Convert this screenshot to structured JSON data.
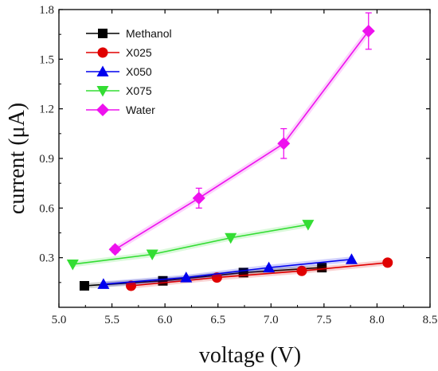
{
  "chart_data": {
    "type": "line",
    "title": "",
    "xlabel": "voltage (V)",
    "ylabel": "current (μA)",
    "xlim": [
      5.0,
      8.5
    ],
    "ylim": [
      0.0,
      1.8
    ],
    "xticks": [
      5.0,
      5.5,
      6.0,
      6.5,
      7.0,
      7.5,
      8.0,
      8.5
    ],
    "yticks": [
      0.3,
      0.6,
      0.9,
      1.2,
      1.5,
      1.8
    ],
    "xtick_labels": [
      "5.0",
      "5.5",
      "6.0",
      "6.5",
      "7.0",
      "7.5",
      "8.0",
      "8.5"
    ],
    "ytick_labels": [
      "0.3",
      "0.6",
      "0.9",
      "1.2",
      "1.5",
      "1.8"
    ],
    "grid": false,
    "legend_position": "top-left",
    "series": [
      {
        "name": "Methanol",
        "color": "#000000",
        "marker": "square",
        "x": [
          5.24,
          5.98,
          6.74,
          7.48
        ],
        "y": [
          0.13,
          0.16,
          0.21,
          0.24
        ]
      },
      {
        "name": "X025",
        "color": "#e00000",
        "marker": "circle",
        "x": [
          5.68,
          6.49,
          7.29,
          8.1
        ],
        "y": [
          0.13,
          0.18,
          0.22,
          0.27
        ]
      },
      {
        "name": "X050",
        "color": "#0000ee",
        "marker": "triangle-up",
        "x": [
          5.42,
          6.2,
          6.98,
          7.76
        ],
        "y": [
          0.14,
          0.18,
          0.24,
          0.29
        ]
      },
      {
        "name": "X075",
        "color": "#33dd33",
        "marker": "triangle-down",
        "x": [
          5.13,
          5.88,
          6.62,
          7.35
        ],
        "y": [
          0.26,
          0.32,
          0.42,
          0.5
        ]
      },
      {
        "name": "Water",
        "color": "#ee11ee",
        "marker": "diamond",
        "x": [
          5.53,
          6.32,
          7.12,
          7.92
        ],
        "y": [
          0.35,
          0.66,
          0.99,
          1.67
        ],
        "error": [
          0.02,
          0.06,
          0.09,
          0.11
        ]
      }
    ]
  }
}
